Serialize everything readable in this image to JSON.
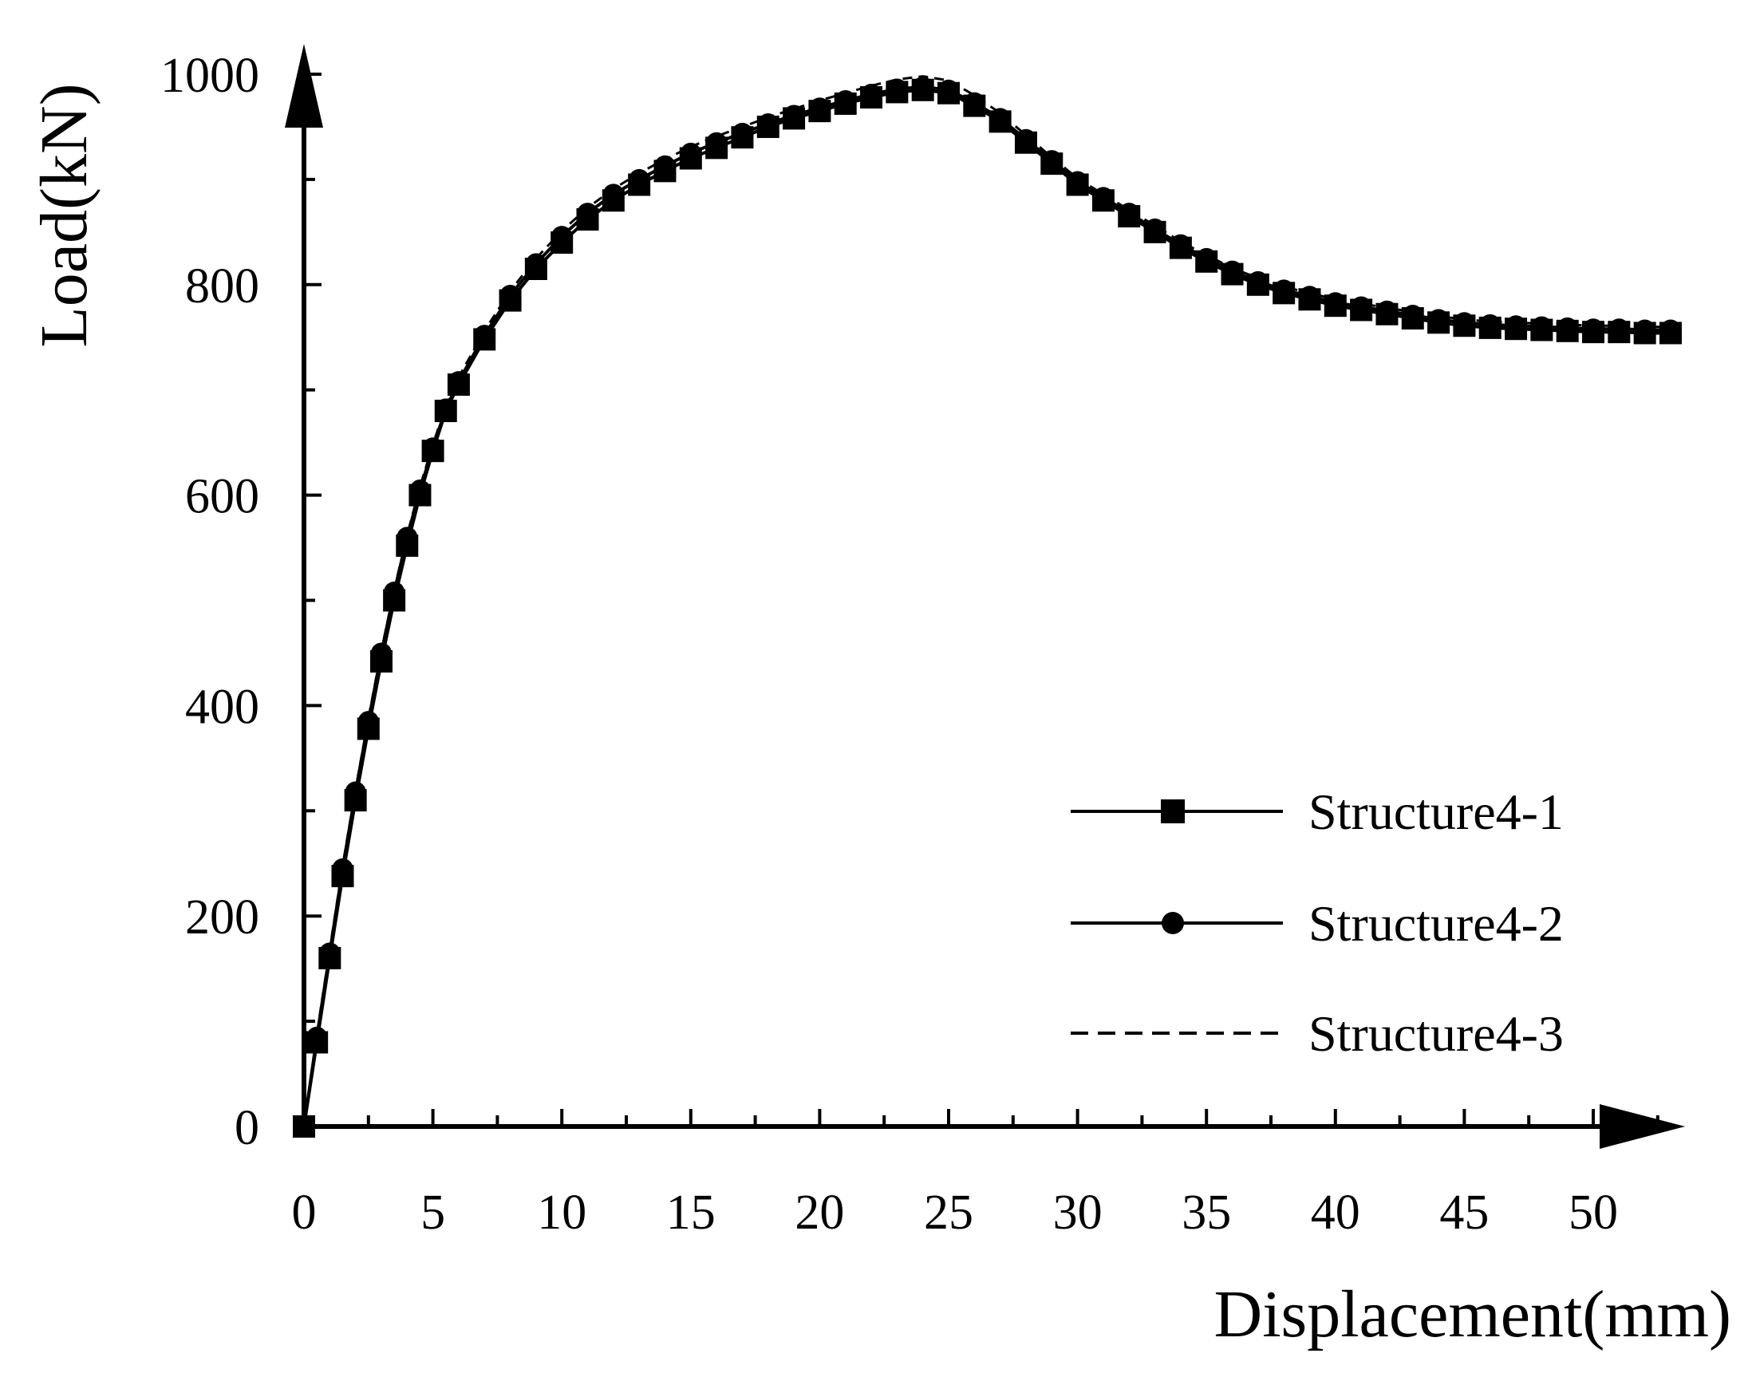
{
  "chart_data": {
    "type": "line",
    "xlabel": "Displacement(mm)",
    "ylabel": "Load(kN)",
    "xlim": [
      0,
      54
    ],
    "ylim": [
      0,
      1000
    ],
    "xticks": [
      0,
      5,
      10,
      15,
      20,
      25,
      30,
      35,
      40,
      45,
      50
    ],
    "yticks": [
      0,
      200,
      400,
      600,
      800,
      1000
    ],
    "grid": false,
    "legend_position": "bottom-right",
    "series": [
      {
        "name": "Structure4-1",
        "line_style": "solid",
        "marker": "square",
        "x": [
          0,
          0.5,
          1,
          1.5,
          2,
          2.5,
          3,
          3.5,
          4,
          4.5,
          5,
          5.5,
          6,
          7,
          8,
          9,
          10,
          11,
          12,
          13,
          14,
          15,
          16,
          17,
          18,
          19,
          20,
          21,
          22,
          23,
          24,
          25,
          26,
          27,
          28,
          29,
          30,
          31,
          32,
          33,
          34,
          35,
          36,
          37,
          38,
          39,
          40,
          41,
          42,
          43,
          44,
          45,
          46,
          47,
          48,
          49,
          50,
          51,
          52,
          53
        ],
        "y": [
          0,
          80,
          160,
          238,
          310,
          378,
          442,
          500,
          552,
          600,
          642,
          680,
          705,
          748,
          785,
          815,
          840,
          862,
          880,
          895,
          908,
          920,
          930,
          940,
          950,
          958,
          965,
          972,
          978,
          983,
          985,
          982,
          970,
          955,
          935,
          915,
          895,
          880,
          865,
          850,
          835,
          822,
          810,
          800,
          792,
          786,
          780,
          776,
          772,
          768,
          764,
          761,
          759,
          758,
          757,
          756,
          755,
          755,
          754,
          754
        ]
      },
      {
        "name": "Structure4-2",
        "line_style": "solid",
        "marker": "circle",
        "x": [
          0,
          0.5,
          1,
          1.5,
          2,
          2.5,
          3,
          3.5,
          4,
          4.5,
          5,
          5.5,
          6,
          7,
          8,
          9,
          10,
          11,
          12,
          13,
          14,
          15,
          16,
          17,
          18,
          19,
          20,
          21,
          22,
          23,
          24,
          25,
          26,
          27,
          28,
          29,
          30,
          31,
          32,
          33,
          34,
          35,
          36,
          37,
          38,
          39,
          40,
          41,
          42,
          43,
          44,
          45,
          46,
          47,
          48,
          49,
          50,
          51,
          52,
          53
        ],
        "y": [
          0,
          85,
          165,
          245,
          318,
          385,
          450,
          508,
          560,
          605,
          645,
          682,
          708,
          752,
          790,
          820,
          846,
          868,
          886,
          900,
          913,
          925,
          935,
          944,
          953,
          961,
          968,
          975,
          981,
          986,
          988,
          985,
          973,
          958,
          938,
          918,
          898,
          883,
          868,
          853,
          838,
          825,
          813,
          803,
          795,
          789,
          783,
          779,
          775,
          771,
          767,
          764,
          762,
          761,
          760,
          759,
          758,
          758,
          757,
          757
        ]
      },
      {
        "name": "Structure4-3",
        "line_style": "dashed",
        "marker": "none",
        "x": [
          0,
          0.5,
          1,
          1.5,
          2,
          2.5,
          3,
          3.5,
          4,
          4.5,
          5,
          5.5,
          6,
          7,
          8,
          9,
          10,
          11,
          12,
          13,
          14,
          15,
          16,
          17,
          18,
          19,
          20,
          21,
          22,
          23,
          24,
          25,
          26,
          27,
          28,
          29,
          30,
          31,
          32,
          33,
          34,
          35,
          36,
          37,
          38,
          39,
          40,
          41,
          42,
          43,
          44,
          45,
          46,
          47,
          48,
          49,
          50,
          51,
          52,
          53
        ],
        "y": [
          0,
          88,
          168,
          248,
          320,
          388,
          452,
          510,
          562,
          608,
          648,
          685,
          712,
          756,
          794,
          825,
          851,
          873,
          891,
          906,
          919,
          931,
          941,
          950,
          959,
          967,
          975,
          982,
          989,
          995,
          998,
          994,
          980,
          963,
          942,
          921,
          901,
          886,
          871,
          856,
          841,
          828,
          816,
          806,
          798,
          792,
          786,
          782,
          778,
          774,
          770,
          767,
          765,
          764,
          763,
          762,
          761,
          761,
          760,
          760
        ]
      }
    ]
  }
}
